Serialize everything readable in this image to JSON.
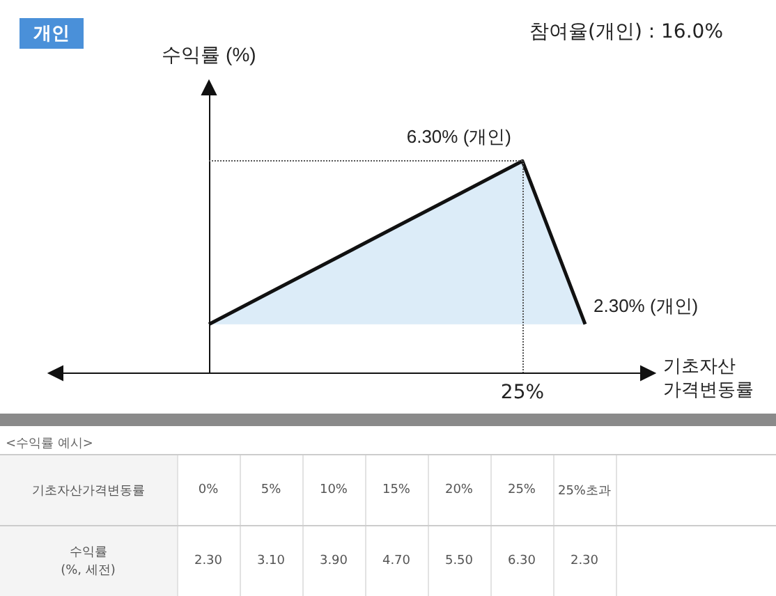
{
  "chart_data": {
    "type": "area",
    "title": "개인",
    "subtitle": "참여율(개인) : 16.0%",
    "ylabel": "수익률 (%)",
    "xlabel": "기초자산\n가격변동률",
    "categories": [
      "0%",
      "5%",
      "10%",
      "15%",
      "20%",
      "25%",
      "25%초과"
    ],
    "series": [
      {
        "color": "#111111",
        "values": [
          2.3,
          3.1,
          3.9,
          4.7,
          5.5,
          6.3,
          2.3
        ],
        "value_labels": [
          "2.30",
          "3.10",
          "3.90",
          "4.70",
          "5.50",
          "6.30",
          "2.30"
        ]
      }
    ],
    "ylim": [
      1.1,
      8.2
    ],
    "tick_labels": "x",
    "grid": false,
    "ref_lines": [
      {
        "axis": "x",
        "value": "0%",
        "color": "#111111"
      },
      {
        "axis": "y",
        "value": 6.3,
        "line_style": "dotted",
        "color": "#555555"
      },
      {
        "axis": "x",
        "value": "25%",
        "line_style": "dotted",
        "color": "#555555"
      }
    ],
    "annotations": [
      {
        "text": "6.30% (개인)",
        "x": "25%",
        "y": 6.3
      },
      {
        "text": "2.30% (개인)",
        "x": "25%초과",
        "y": 2.3
      },
      "25%",
      "<수익률 예시>",
      "기초자산가격변동률",
      "수익률\n(%, 세전)"
    ]
  }
}
